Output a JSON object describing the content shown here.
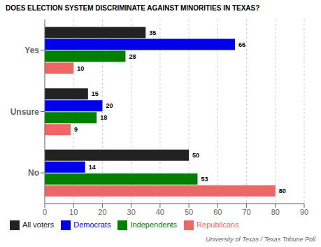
{
  "chart_data": {
    "type": "bar",
    "orientation": "horizontal",
    "title": "DOES ELECTION SYSTEM DISCRIMINATE AGAINST MINORITIES IN TEXAS?",
    "categories": [
      "Yes",
      "Unsure",
      "No"
    ],
    "series": [
      {
        "name": "All voters",
        "color": "#222222",
        "values": [
          35,
          15,
          50
        ]
      },
      {
        "name": "Democrats",
        "color": "#0000ee",
        "values": [
          66,
          20,
          14
        ]
      },
      {
        "name": "Independents",
        "color": "#008000",
        "values": [
          28,
          18,
          53
        ]
      },
      {
        "name": "Republicans",
        "color": "#ee6666",
        "values": [
          10,
          9,
          80
        ]
      }
    ],
    "xlim": [
      0,
      90
    ],
    "xticks": [
      0,
      10,
      20,
      30,
      40,
      50,
      60,
      70,
      80,
      90
    ],
    "grid": true,
    "data_labels": true,
    "legend": "bottom",
    "annotations": [
      "University of Texas / Texas Tribune Poll"
    ]
  }
}
